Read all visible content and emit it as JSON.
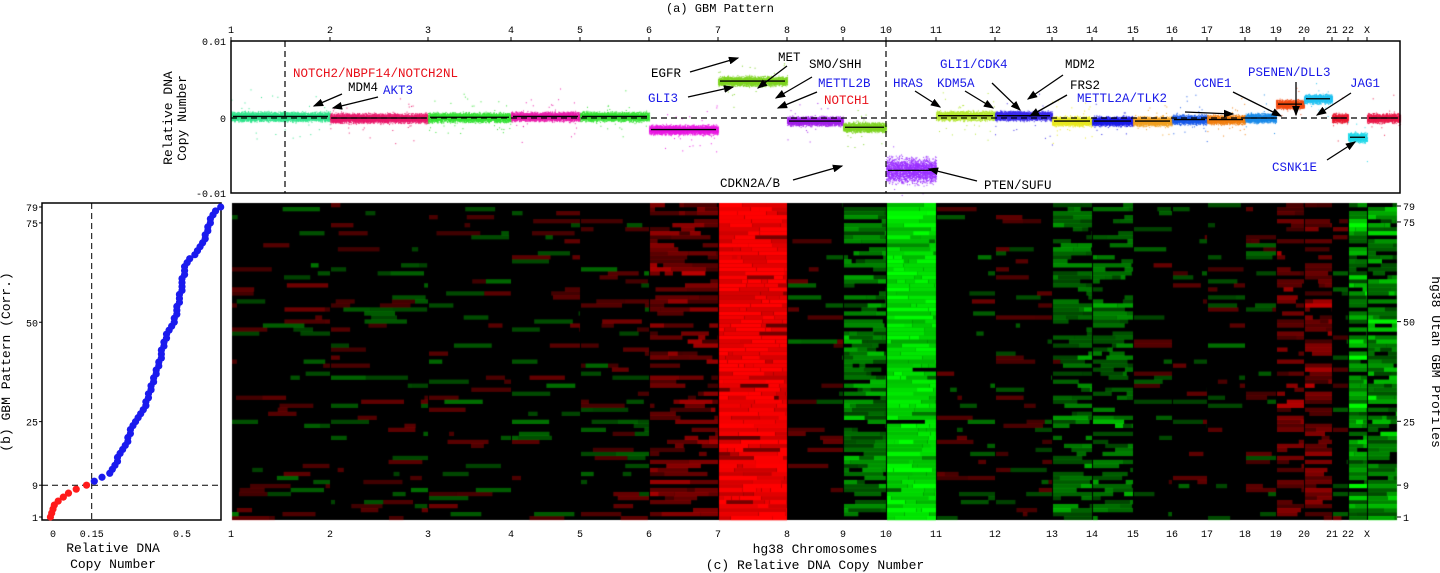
{
  "chart_data": [
    {
      "panel": "(a)",
      "type": "scatter",
      "title": "(a) GBM Pattern",
      "ylabel": [
        "Relative DNA",
        "Copy Number"
      ],
      "ylim": [
        -0.01,
        0.01
      ],
      "yticks": [
        "0.01",
        "0",
        "-0.01"
      ],
      "chromosomes": [
        "1",
        "2",
        "3",
        "4",
        "5",
        "6",
        "7",
        "8",
        "9",
        "10",
        "11",
        "12",
        "13",
        "14",
        "15",
        "16",
        "17",
        "18",
        "19",
        "20",
        "21",
        "22",
        "X"
      ],
      "segment_levels": [
        0.0002,
        0.0,
        0.0001,
        0.0002,
        0.0002,
        -0.0015,
        0.0048,
        -0.0004,
        -0.0012,
        -0.0068,
        0.0003,
        0.0003,
        -0.0004,
        -0.0004,
        -0.0004,
        -0.0002,
        -0.0002,
        0.0,
        0.0018,
        0.0025,
        0.0,
        -0.0025,
        0.0
      ],
      "chromosome_colors": [
        "#2de38a",
        "#e8186a",
        "#33e033",
        "#e818a8",
        "#33e033",
        "#e818e0",
        "#7ed321",
        "#a020e8",
        "#7ed321",
        "#9b30ff",
        "#b3e632",
        "#3a2ae8",
        "#e8e820",
        "#1a1ae8",
        "#f0a020",
        "#1a5ae8",
        "#f07f10",
        "#1a8ae8",
        "#f04a10",
        "#20c0f0",
        "#e81830",
        "#20d8e8",
        "#e81848"
      ],
      "reference_line": 0,
      "annotations": [
        {
          "text": "NOTCH2/NBPF14/NOTCH2NL",
          "color": "#e8101a"
        },
        {
          "text": "MDM4",
          "color": "#000000"
        },
        {
          "text": "AKT3",
          "color": "#1a1ae8"
        },
        {
          "text": "EGFR",
          "color": "#000000"
        },
        {
          "text": "MET",
          "color": "#000000"
        },
        {
          "text": "SMO/SHH",
          "color": "#000000"
        },
        {
          "text": "METTL2B",
          "color": "#1a1ae8"
        },
        {
          "text": "GLI3",
          "color": "#1a1ae8"
        },
        {
          "text": "NOTCH1",
          "color": "#e8101a"
        },
        {
          "text": "CDKN2A/B",
          "color": "#000000"
        },
        {
          "text": "PTEN/SUFU",
          "color": "#000000"
        },
        {
          "text": "HRAS",
          "color": "#1a1ae8"
        },
        {
          "text": "GLI1/CDK4",
          "color": "#1a1ae8"
        },
        {
          "text": "KDM5A",
          "color": "#1a1ae8"
        },
        {
          "text": "MDM2",
          "color": "#000000"
        },
        {
          "text": "FRS2",
          "color": "#000000"
        },
        {
          "text": "METTL2A/TLK2",
          "color": "#1a1ae8"
        },
        {
          "text": "CCNE1",
          "color": "#1a1ae8"
        },
        {
          "text": "PSENEN/DLL3",
          "color": "#1a1ae8"
        },
        {
          "text": "JAG1",
          "color": "#1a1ae8"
        },
        {
          "text": "CSNK1E",
          "color": "#1a1ae8"
        }
      ]
    },
    {
      "panel": "(b)",
      "type": "scatter",
      "ylabel": "(b) GBM Pattern (Corr.)",
      "xlabel": [
        "Relative DNA",
        "Copy Number"
      ],
      "xticks": [
        "0",
        "0.15",
        "0.5"
      ],
      "yticks": [
        "1",
        "9",
        "25",
        "50",
        "75",
        "79"
      ],
      "threshold_x": 0.15,
      "threshold_rank": 9,
      "colors": {
        "below": "#ff1a1a",
        "above": "#1a1aee"
      },
      "x": [
        -0.01,
        -0.005,
        0.0,
        0.005,
        0.02,
        0.04,
        0.06,
        0.09,
        0.13,
        0.16,
        0.19,
        0.22,
        0.23,
        0.24,
        0.25,
        0.25,
        0.26,
        0.27,
        0.28,
        0.29,
        0.29,
        0.3,
        0.3,
        0.31,
        0.32,
        0.33,
        0.34,
        0.35,
        0.36,
        0.36,
        0.37,
        0.37,
        0.38,
        0.38,
        0.39,
        0.39,
        0.4,
        0.4,
        0.41,
        0.41,
        0.42,
        0.42,
        0.42,
        0.43,
        0.43,
        0.44,
        0.44,
        0.45,
        0.46,
        0.47,
        0.47,
        0.48,
        0.48,
        0.48,
        0.49,
        0.49,
        0.49,
        0.5,
        0.5,
        0.5,
        0.5,
        0.51,
        0.51,
        0.51,
        0.52,
        0.53,
        0.55,
        0.56,
        0.57,
        0.58,
        0.59,
        0.59,
        0.6,
        0.6,
        0.61,
        0.61,
        0.62,
        0.63,
        0.65
      ]
    },
    {
      "panel": "(c)",
      "type": "heatmap",
      "title": "(c) Relative DNA Copy Number",
      "xlabel": "hg38 Chromosomes",
      "ylabel": "hg38 Utah GBM Profiles",
      "yticks": [
        "1",
        "9",
        "25",
        "50",
        "75",
        "79"
      ],
      "rows": 79,
      "colorscale": {
        "gain": "#ff0000",
        "neutral": "#000000",
        "loss": "#00ff00"
      }
    }
  ]
}
